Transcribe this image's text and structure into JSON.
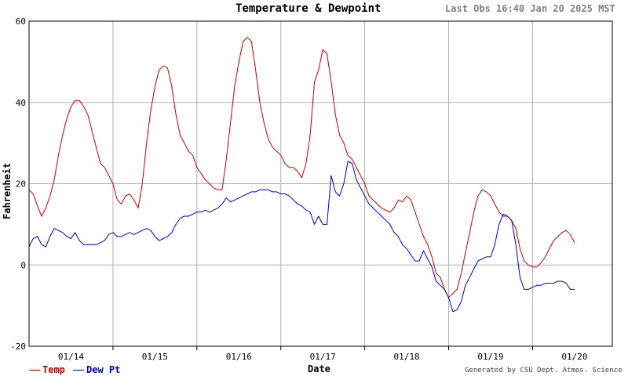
{
  "chart_data": {
    "type": "line",
    "title": "Temperature & Dewpoint",
    "last_obs": "Last Obs 16:40 Jan 20 2025 MST",
    "xlabel": "Date",
    "ylabel": "Fahrenheit",
    "credit": "Generated by CSU Dept. Atmos. Science",
    "xlim": [
      0,
      6.95
    ],
    "ylim": [
      -20,
      60
    ],
    "yticks": [
      -20,
      0,
      20,
      40,
      60
    ],
    "ytick_labels": [
      "-20",
      "0",
      "20",
      "40",
      "60"
    ],
    "day_boundaries": [
      1,
      2,
      3,
      4,
      5,
      6
    ],
    "x_tick_labels": [
      {
        "x": 0.5,
        "label": "01/14"
      },
      {
        "x": 1.5,
        "label": "01/15"
      },
      {
        "x": 2.5,
        "label": "01/16"
      },
      {
        "x": 3.5,
        "label": "01/17"
      },
      {
        "x": 4.5,
        "label": "01/18"
      },
      {
        "x": 5.5,
        "label": "01/19"
      },
      {
        "x": 6.5,
        "label": "01/20"
      }
    ],
    "grid": true,
    "legend_position": "bottom-left",
    "series": [
      {
        "name": "Temp",
        "color": "#cc0000",
        "points": [
          [
            0.0,
            18.5
          ],
          [
            0.05,
            17.5
          ],
          [
            0.1,
            14.5
          ],
          [
            0.15,
            12
          ],
          [
            0.2,
            14
          ],
          [
            0.25,
            17
          ],
          [
            0.3,
            21
          ],
          [
            0.35,
            27
          ],
          [
            0.4,
            32
          ],
          [
            0.45,
            36
          ],
          [
            0.5,
            39
          ],
          [
            0.55,
            40.5
          ],
          [
            0.6,
            40.5
          ],
          [
            0.65,
            39
          ],
          [
            0.7,
            37
          ],
          [
            0.75,
            33
          ],
          [
            0.8,
            29
          ],
          [
            0.85,
            25
          ],
          [
            0.9,
            24
          ],
          [
            0.95,
            22
          ],
          [
            1.0,
            20
          ],
          [
            1.05,
            16
          ],
          [
            1.1,
            15
          ],
          [
            1.15,
            17
          ],
          [
            1.2,
            17.5
          ],
          [
            1.25,
            16
          ],
          [
            1.3,
            14
          ],
          [
            1.35,
            20
          ],
          [
            1.4,
            30
          ],
          [
            1.45,
            38
          ],
          [
            1.5,
            44
          ],
          [
            1.55,
            48
          ],
          [
            1.6,
            49
          ],
          [
            1.65,
            48.5
          ],
          [
            1.7,
            44
          ],
          [
            1.75,
            37
          ],
          [
            1.8,
            32
          ],
          [
            1.85,
            30
          ],
          [
            1.9,
            28
          ],
          [
            1.95,
            27
          ],
          [
            2.0,
            24
          ],
          [
            2.05,
            22.5
          ],
          [
            2.1,
            21
          ],
          [
            2.15,
            20
          ],
          [
            2.2,
            19
          ],
          [
            2.25,
            18.5
          ],
          [
            2.3,
            18.5
          ],
          [
            2.35,
            26
          ],
          [
            2.4,
            35
          ],
          [
            2.45,
            44
          ],
          [
            2.5,
            50
          ],
          [
            2.55,
            55
          ],
          [
            2.6,
            56
          ],
          [
            2.65,
            55
          ],
          [
            2.7,
            48
          ],
          [
            2.75,
            40
          ],
          [
            2.8,
            35
          ],
          [
            2.85,
            31
          ],
          [
            2.9,
            29
          ],
          [
            2.95,
            28
          ],
          [
            3.0,
            27
          ],
          [
            3.05,
            25
          ],
          [
            3.1,
            24
          ],
          [
            3.15,
            24
          ],
          [
            3.2,
            23
          ],
          [
            3.25,
            21.5
          ],
          [
            3.3,
            25
          ],
          [
            3.35,
            32
          ],
          [
            3.4,
            45
          ],
          [
            3.45,
            48
          ],
          [
            3.5,
            53
          ],
          [
            3.55,
            52
          ],
          [
            3.6,
            45
          ],
          [
            3.65,
            37
          ],
          [
            3.7,
            32
          ],
          [
            3.75,
            30
          ],
          [
            3.8,
            27
          ],
          [
            3.85,
            26
          ],
          [
            3.9,
            24
          ],
          [
            3.95,
            22
          ],
          [
            4.0,
            20
          ],
          [
            4.05,
            17
          ],
          [
            4.1,
            16
          ],
          [
            4.15,
            15
          ],
          [
            4.2,
            14
          ],
          [
            4.25,
            13.5
          ],
          [
            4.3,
            13
          ],
          [
            4.35,
            14
          ],
          [
            4.4,
            16
          ],
          [
            4.45,
            15.5
          ],
          [
            4.5,
            17
          ],
          [
            4.55,
            16
          ],
          [
            4.6,
            13
          ],
          [
            4.65,
            10
          ],
          [
            4.7,
            7
          ],
          [
            4.75,
            5
          ],
          [
            4.8,
            2
          ],
          [
            4.85,
            -2
          ],
          [
            4.9,
            -3
          ],
          [
            4.95,
            -6
          ],
          [
            5.0,
            -8
          ],
          [
            5.05,
            -7
          ],
          [
            5.1,
            -6
          ],
          [
            5.15,
            -2
          ],
          [
            5.2,
            3
          ],
          [
            5.25,
            8
          ],
          [
            5.3,
            13
          ],
          [
            5.35,
            17
          ],
          [
            5.4,
            18.5
          ],
          [
            5.45,
            18
          ],
          [
            5.5,
            17
          ],
          [
            5.55,
            15
          ],
          [
            5.6,
            13
          ],
          [
            5.65,
            12
          ],
          [
            5.7,
            12
          ],
          [
            5.75,
            11
          ],
          [
            5.8,
            9
          ],
          [
            5.85,
            4
          ],
          [
            5.9,
            1
          ],
          [
            5.95,
            0
          ],
          [
            6.0,
            -0.5
          ],
          [
            6.05,
            -0.5
          ],
          [
            6.1,
            0.5
          ],
          [
            6.15,
            2
          ],
          [
            6.2,
            4
          ],
          [
            6.25,
            6
          ],
          [
            6.3,
            7
          ],
          [
            6.35,
            8
          ],
          [
            6.4,
            8.5
          ],
          [
            6.45,
            7.5
          ],
          [
            6.5,
            5.5
          ]
        ]
      },
      {
        "name": "Dew Pt",
        "color": "#0000cc",
        "points": [
          [
            0.0,
            4.5
          ],
          [
            0.05,
            6.5
          ],
          [
            0.1,
            7
          ],
          [
            0.15,
            5
          ],
          [
            0.2,
            4.5
          ],
          [
            0.25,
            7
          ],
          [
            0.3,
            9
          ],
          [
            0.35,
            8.5
          ],
          [
            0.4,
            8
          ],
          [
            0.45,
            7
          ],
          [
            0.5,
            6.5
          ],
          [
            0.55,
            8
          ],
          [
            0.6,
            6
          ],
          [
            0.65,
            5
          ],
          [
            0.7,
            5
          ],
          [
            0.75,
            5
          ],
          [
            0.8,
            5
          ],
          [
            0.85,
            5.5
          ],
          [
            0.9,
            6
          ],
          [
            0.95,
            7.5
          ],
          [
            1.0,
            8
          ],
          [
            1.05,
            7
          ],
          [
            1.1,
            7
          ],
          [
            1.15,
            7.5
          ],
          [
            1.2,
            8
          ],
          [
            1.25,
            7.5
          ],
          [
            1.3,
            8
          ],
          [
            1.35,
            8.5
          ],
          [
            1.4,
            9
          ],
          [
            1.45,
            8.5
          ],
          [
            1.5,
            7
          ],
          [
            1.55,
            6
          ],
          [
            1.6,
            6.5
          ],
          [
            1.65,
            7
          ],
          [
            1.7,
            8
          ],
          [
            1.75,
            10
          ],
          [
            1.8,
            11.5
          ],
          [
            1.85,
            12
          ],
          [
            1.9,
            12
          ],
          [
            1.95,
            12.5
          ],
          [
            2.0,
            13
          ],
          [
            2.05,
            13
          ],
          [
            2.1,
            13.5
          ],
          [
            2.15,
            13
          ],
          [
            2.2,
            13.5
          ],
          [
            2.25,
            14
          ],
          [
            2.3,
            15
          ],
          [
            2.35,
            16.5
          ],
          [
            2.4,
            15.5
          ],
          [
            2.45,
            16
          ],
          [
            2.5,
            16.5
          ],
          [
            2.55,
            17
          ],
          [
            2.6,
            17.5
          ],
          [
            2.65,
            18
          ],
          [
            2.7,
            18
          ],
          [
            2.75,
            18.5
          ],
          [
            2.8,
            18.5
          ],
          [
            2.85,
            18.5
          ],
          [
            2.9,
            18
          ],
          [
            2.95,
            18
          ],
          [
            3.0,
            17.5
          ],
          [
            3.05,
            17.5
          ],
          [
            3.1,
            17
          ],
          [
            3.15,
            16
          ],
          [
            3.2,
            15
          ],
          [
            3.25,
            14.5
          ],
          [
            3.3,
            13.5
          ],
          [
            3.35,
            13
          ],
          [
            3.4,
            10
          ],
          [
            3.45,
            12
          ],
          [
            3.5,
            10
          ],
          [
            3.55,
            10
          ],
          [
            3.6,
            22
          ],
          [
            3.65,
            18
          ],
          [
            3.7,
            17
          ],
          [
            3.75,
            20
          ],
          [
            3.8,
            25.5
          ],
          [
            3.85,
            25
          ],
          [
            3.9,
            21
          ],
          [
            3.95,
            19
          ],
          [
            4.0,
            17
          ],
          [
            4.05,
            15
          ],
          [
            4.1,
            14
          ],
          [
            4.15,
            13
          ],
          [
            4.2,
            12
          ],
          [
            4.25,
            11
          ],
          [
            4.3,
            10
          ],
          [
            4.35,
            8
          ],
          [
            4.4,
            7
          ],
          [
            4.45,
            5
          ],
          [
            4.5,
            4
          ],
          [
            4.55,
            2.5
          ],
          [
            4.6,
            1
          ],
          [
            4.65,
            1
          ],
          [
            4.7,
            3.5
          ],
          [
            4.75,
            1.5
          ],
          [
            4.8,
            -0.5
          ],
          [
            4.85,
            -4
          ],
          [
            4.9,
            -5
          ],
          [
            4.95,
            -6
          ],
          [
            5.0,
            -8
          ],
          [
            5.05,
            -11.5
          ],
          [
            5.1,
            -11
          ],
          [
            5.15,
            -9
          ],
          [
            5.2,
            -5
          ],
          [
            5.25,
            -3
          ],
          [
            5.3,
            -1
          ],
          [
            5.35,
            1
          ],
          [
            5.4,
            1.5
          ],
          [
            5.45,
            2
          ],
          [
            5.5,
            2
          ],
          [
            5.55,
            5
          ],
          [
            5.6,
            10
          ],
          [
            5.65,
            12.5
          ],
          [
            5.7,
            12
          ],
          [
            5.75,
            11
          ],
          [
            5.8,
            5
          ],
          [
            5.85,
            -3
          ],
          [
            5.9,
            -6
          ],
          [
            5.95,
            -6
          ],
          [
            6.0,
            -5.5
          ],
          [
            6.05,
            -5
          ],
          [
            6.1,
            -5
          ],
          [
            6.15,
            -4.5
          ],
          [
            6.2,
            -4.5
          ],
          [
            6.25,
            -4.5
          ],
          [
            6.3,
            -4
          ],
          [
            6.35,
            -4
          ],
          [
            6.4,
            -4.5
          ],
          [
            6.45,
            -6
          ],
          [
            6.5,
            -6
          ]
        ]
      }
    ]
  }
}
